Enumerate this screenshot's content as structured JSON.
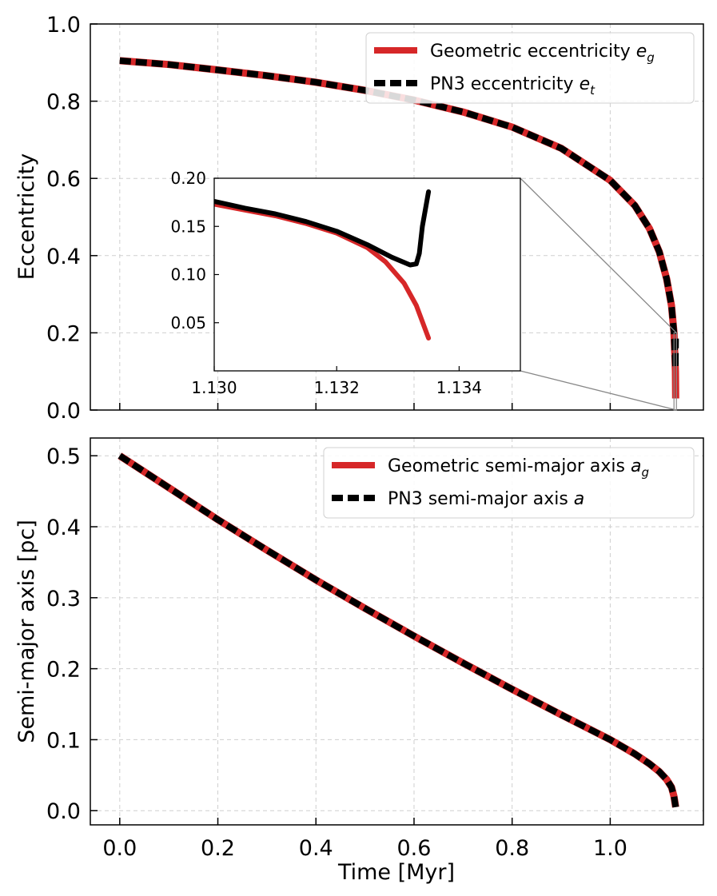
{
  "chart_data": [
    {
      "type": "line",
      "ylabel": "Eccentricity",
      "xlim": [
        -0.06,
        1.19
      ],
      "ylim": [
        0.0,
        1.0
      ],
      "yticks": [
        0.0,
        0.2,
        0.4,
        0.6,
        0.8,
        1.0
      ],
      "ytick_labels": [
        "0.0",
        "0.2",
        "0.4",
        "0.6",
        "0.8",
        "1.0"
      ],
      "xticks": [
        0.0,
        0.2,
        0.4,
        0.6,
        0.8,
        1.0
      ],
      "grid": true,
      "legend_position": "upper-right",
      "series": [
        {
          "name": "Geometric eccentricity",
          "name_subscript": "g",
          "symbol": "e",
          "color": "#d62728",
          "style": "solid",
          "x": [
            0.0,
            0.1,
            0.2,
            0.3,
            0.4,
            0.5,
            0.6,
            0.7,
            0.8,
            0.9,
            1.0,
            1.05,
            1.08,
            1.1,
            1.115,
            1.125,
            1.13,
            1.133,
            1.1335
          ],
          "y": [
            0.905,
            0.895,
            0.881,
            0.866,
            0.849,
            0.828,
            0.803,
            0.772,
            0.733,
            0.678,
            0.595,
            0.53,
            0.47,
            0.41,
            0.34,
            0.27,
            0.2,
            0.1,
            0.03
          ]
        },
        {
          "name": "PN3 eccentricity",
          "name_subscript": "t",
          "symbol": "e",
          "color": "#000000",
          "style": "dashed",
          "x": [
            0.0,
            0.1,
            0.2,
            0.3,
            0.4,
            0.5,
            0.6,
            0.7,
            0.8,
            0.9,
            1.0,
            1.05,
            1.08,
            1.1,
            1.115,
            1.125,
            1.13,
            1.132,
            1.133,
            1.1335
          ],
          "y": [
            0.905,
            0.895,
            0.881,
            0.866,
            0.849,
            0.828,
            0.803,
            0.772,
            0.733,
            0.678,
            0.595,
            0.53,
            0.47,
            0.41,
            0.34,
            0.27,
            0.2,
            0.14,
            0.11,
            0.185
          ]
        }
      ],
      "inset": {
        "xlim": [
          1.13,
          1.135
        ],
        "ylim": [
          0.0,
          0.2
        ],
        "xticks": [
          1.13,
          1.132,
          1.134
        ],
        "xtick_labels": [
          "1.130",
          "1.132",
          "1.134"
        ],
        "yticks": [
          0.05,
          0.1,
          0.15,
          0.2
        ],
        "ytick_labels": [
          "0.05",
          "0.10",
          "0.15",
          "0.20"
        ],
        "zoom_region_x": [
          1.13,
          1.135
        ],
        "zoom_region_y": [
          0.0,
          0.2
        ],
        "series": [
          {
            "name": "Geometric eccentricity",
            "color": "#d62728",
            "x": [
              1.13,
              1.1305,
              1.131,
              1.1315,
              1.132,
              1.1325,
              1.1328,
              1.1331,
              1.1333,
              1.1335
            ],
            "y": [
              0.173,
              0.167,
              0.161,
              0.153,
              0.143,
              0.128,
              0.113,
              0.091,
              0.068,
              0.034
            ]
          },
          {
            "name": "PN3 eccentricity",
            "color": "#000000",
            "x": [
              1.13,
              1.1305,
              1.131,
              1.1315,
              1.132,
              1.1325,
              1.1329,
              1.1332,
              1.1333,
              1.13335,
              1.1334,
              1.1335
            ],
            "y": [
              0.176,
              0.169,
              0.163,
              0.155,
              0.145,
              0.131,
              0.118,
              0.11,
              0.111,
              0.122,
              0.15,
              0.186
            ]
          }
        ]
      }
    },
    {
      "type": "line",
      "xlabel": "Time [Myr]",
      "ylabel": "Semi-major axis [pc]",
      "xlim": [
        -0.06,
        1.19
      ],
      "ylim": [
        -0.02,
        0.525
      ],
      "yticks": [
        0.0,
        0.1,
        0.2,
        0.3,
        0.4,
        0.5
      ],
      "ytick_labels": [
        "0.0",
        "0.1",
        "0.2",
        "0.3",
        "0.4",
        "0.5"
      ],
      "xticks": [
        0.0,
        0.2,
        0.4,
        0.6,
        0.8,
        1.0
      ],
      "xtick_labels": [
        "0.0",
        "0.2",
        "0.4",
        "0.6",
        "0.8",
        "1.0"
      ],
      "grid": true,
      "legend_position": "upper-right",
      "series": [
        {
          "name": "Geometric semi-major axis",
          "name_subscript": "g",
          "symbol": "a",
          "color": "#d62728",
          "style": "solid",
          "x": [
            0.0,
            0.1,
            0.2,
            0.3,
            0.4,
            0.5,
            0.6,
            0.7,
            0.8,
            0.9,
            1.0,
            1.05,
            1.08,
            1.1,
            1.115,
            1.125,
            1.13,
            1.1335
          ],
          "y": [
            0.5,
            0.455,
            0.41,
            0.367,
            0.325,
            0.285,
            0.246,
            0.208,
            0.171,
            0.135,
            0.1,
            0.08,
            0.066,
            0.055,
            0.044,
            0.033,
            0.02,
            0.005
          ]
        },
        {
          "name": "PN3 semi-major axis",
          "name_subscript": "",
          "symbol": "a",
          "color": "#000000",
          "style": "dashed",
          "x": [
            0.0,
            0.1,
            0.2,
            0.3,
            0.4,
            0.5,
            0.6,
            0.7,
            0.8,
            0.9,
            1.0,
            1.05,
            1.08,
            1.1,
            1.115,
            1.125,
            1.13,
            1.1335
          ],
          "y": [
            0.5,
            0.455,
            0.41,
            0.367,
            0.325,
            0.285,
            0.246,
            0.208,
            0.171,
            0.135,
            0.1,
            0.08,
            0.066,
            0.055,
            0.044,
            0.033,
            0.02,
            0.005
          ]
        }
      ]
    }
  ]
}
